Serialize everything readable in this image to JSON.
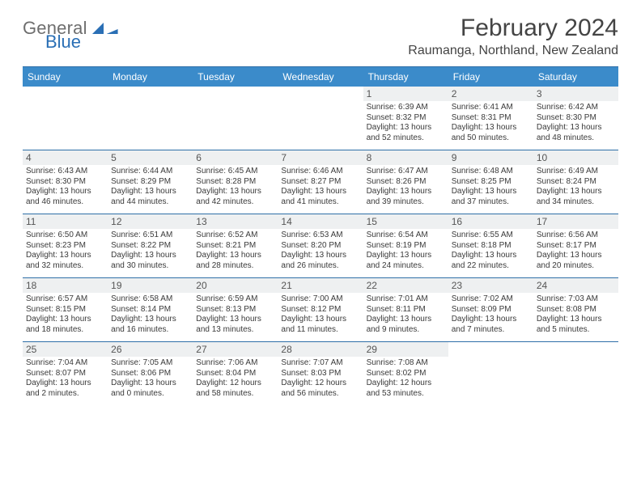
{
  "logo": {
    "word1": "General",
    "word2": "Blue"
  },
  "title": "February 2024",
  "location": "Raumanga, Northland, New Zealand",
  "colors": {
    "header_bar": "#3b8bca",
    "rule": "#2f6fa8",
    "daynum_bg": "#eef0f1",
    "text": "#3a3a3a",
    "logo_gray": "#6e6e6e",
    "logo_blue": "#2a6fb5"
  },
  "dow": [
    "Sunday",
    "Monday",
    "Tuesday",
    "Wednesday",
    "Thursday",
    "Friday",
    "Saturday"
  ],
  "weeks": [
    [
      null,
      null,
      null,
      null,
      {
        "n": "1",
        "sr": "Sunrise: 6:39 AM",
        "ss": "Sunset: 8:32 PM",
        "d1": "Daylight: 13 hours",
        "d2": "and 52 minutes."
      },
      {
        "n": "2",
        "sr": "Sunrise: 6:41 AM",
        "ss": "Sunset: 8:31 PM",
        "d1": "Daylight: 13 hours",
        "d2": "and 50 minutes."
      },
      {
        "n": "3",
        "sr": "Sunrise: 6:42 AM",
        "ss": "Sunset: 8:30 PM",
        "d1": "Daylight: 13 hours",
        "d2": "and 48 minutes."
      }
    ],
    [
      {
        "n": "4",
        "sr": "Sunrise: 6:43 AM",
        "ss": "Sunset: 8:30 PM",
        "d1": "Daylight: 13 hours",
        "d2": "and 46 minutes."
      },
      {
        "n": "5",
        "sr": "Sunrise: 6:44 AM",
        "ss": "Sunset: 8:29 PM",
        "d1": "Daylight: 13 hours",
        "d2": "and 44 minutes."
      },
      {
        "n": "6",
        "sr": "Sunrise: 6:45 AM",
        "ss": "Sunset: 8:28 PM",
        "d1": "Daylight: 13 hours",
        "d2": "and 42 minutes."
      },
      {
        "n": "7",
        "sr": "Sunrise: 6:46 AM",
        "ss": "Sunset: 8:27 PM",
        "d1": "Daylight: 13 hours",
        "d2": "and 41 minutes."
      },
      {
        "n": "8",
        "sr": "Sunrise: 6:47 AM",
        "ss": "Sunset: 8:26 PM",
        "d1": "Daylight: 13 hours",
        "d2": "and 39 minutes."
      },
      {
        "n": "9",
        "sr": "Sunrise: 6:48 AM",
        "ss": "Sunset: 8:25 PM",
        "d1": "Daylight: 13 hours",
        "d2": "and 37 minutes."
      },
      {
        "n": "10",
        "sr": "Sunrise: 6:49 AM",
        "ss": "Sunset: 8:24 PM",
        "d1": "Daylight: 13 hours",
        "d2": "and 34 minutes."
      }
    ],
    [
      {
        "n": "11",
        "sr": "Sunrise: 6:50 AM",
        "ss": "Sunset: 8:23 PM",
        "d1": "Daylight: 13 hours",
        "d2": "and 32 minutes."
      },
      {
        "n": "12",
        "sr": "Sunrise: 6:51 AM",
        "ss": "Sunset: 8:22 PM",
        "d1": "Daylight: 13 hours",
        "d2": "and 30 minutes."
      },
      {
        "n": "13",
        "sr": "Sunrise: 6:52 AM",
        "ss": "Sunset: 8:21 PM",
        "d1": "Daylight: 13 hours",
        "d2": "and 28 minutes."
      },
      {
        "n": "14",
        "sr": "Sunrise: 6:53 AM",
        "ss": "Sunset: 8:20 PM",
        "d1": "Daylight: 13 hours",
        "d2": "and 26 minutes."
      },
      {
        "n": "15",
        "sr": "Sunrise: 6:54 AM",
        "ss": "Sunset: 8:19 PM",
        "d1": "Daylight: 13 hours",
        "d2": "and 24 minutes."
      },
      {
        "n": "16",
        "sr": "Sunrise: 6:55 AM",
        "ss": "Sunset: 8:18 PM",
        "d1": "Daylight: 13 hours",
        "d2": "and 22 minutes."
      },
      {
        "n": "17",
        "sr": "Sunrise: 6:56 AM",
        "ss": "Sunset: 8:17 PM",
        "d1": "Daylight: 13 hours",
        "d2": "and 20 minutes."
      }
    ],
    [
      {
        "n": "18",
        "sr": "Sunrise: 6:57 AM",
        "ss": "Sunset: 8:15 PM",
        "d1": "Daylight: 13 hours",
        "d2": "and 18 minutes."
      },
      {
        "n": "19",
        "sr": "Sunrise: 6:58 AM",
        "ss": "Sunset: 8:14 PM",
        "d1": "Daylight: 13 hours",
        "d2": "and 16 minutes."
      },
      {
        "n": "20",
        "sr": "Sunrise: 6:59 AM",
        "ss": "Sunset: 8:13 PM",
        "d1": "Daylight: 13 hours",
        "d2": "and 13 minutes."
      },
      {
        "n": "21",
        "sr": "Sunrise: 7:00 AM",
        "ss": "Sunset: 8:12 PM",
        "d1": "Daylight: 13 hours",
        "d2": "and 11 minutes."
      },
      {
        "n": "22",
        "sr": "Sunrise: 7:01 AM",
        "ss": "Sunset: 8:11 PM",
        "d1": "Daylight: 13 hours",
        "d2": "and 9 minutes."
      },
      {
        "n": "23",
        "sr": "Sunrise: 7:02 AM",
        "ss": "Sunset: 8:09 PM",
        "d1": "Daylight: 13 hours",
        "d2": "and 7 minutes."
      },
      {
        "n": "24",
        "sr": "Sunrise: 7:03 AM",
        "ss": "Sunset: 8:08 PM",
        "d1": "Daylight: 13 hours",
        "d2": "and 5 minutes."
      }
    ],
    [
      {
        "n": "25",
        "sr": "Sunrise: 7:04 AM",
        "ss": "Sunset: 8:07 PM",
        "d1": "Daylight: 13 hours",
        "d2": "and 2 minutes."
      },
      {
        "n": "26",
        "sr": "Sunrise: 7:05 AM",
        "ss": "Sunset: 8:06 PM",
        "d1": "Daylight: 13 hours",
        "d2": "and 0 minutes."
      },
      {
        "n": "27",
        "sr": "Sunrise: 7:06 AM",
        "ss": "Sunset: 8:04 PM",
        "d1": "Daylight: 12 hours",
        "d2": "and 58 minutes."
      },
      {
        "n": "28",
        "sr": "Sunrise: 7:07 AM",
        "ss": "Sunset: 8:03 PM",
        "d1": "Daylight: 12 hours",
        "d2": "and 56 minutes."
      },
      {
        "n": "29",
        "sr": "Sunrise: 7:08 AM",
        "ss": "Sunset: 8:02 PM",
        "d1": "Daylight: 12 hours",
        "d2": "and 53 minutes."
      },
      null,
      null
    ]
  ]
}
